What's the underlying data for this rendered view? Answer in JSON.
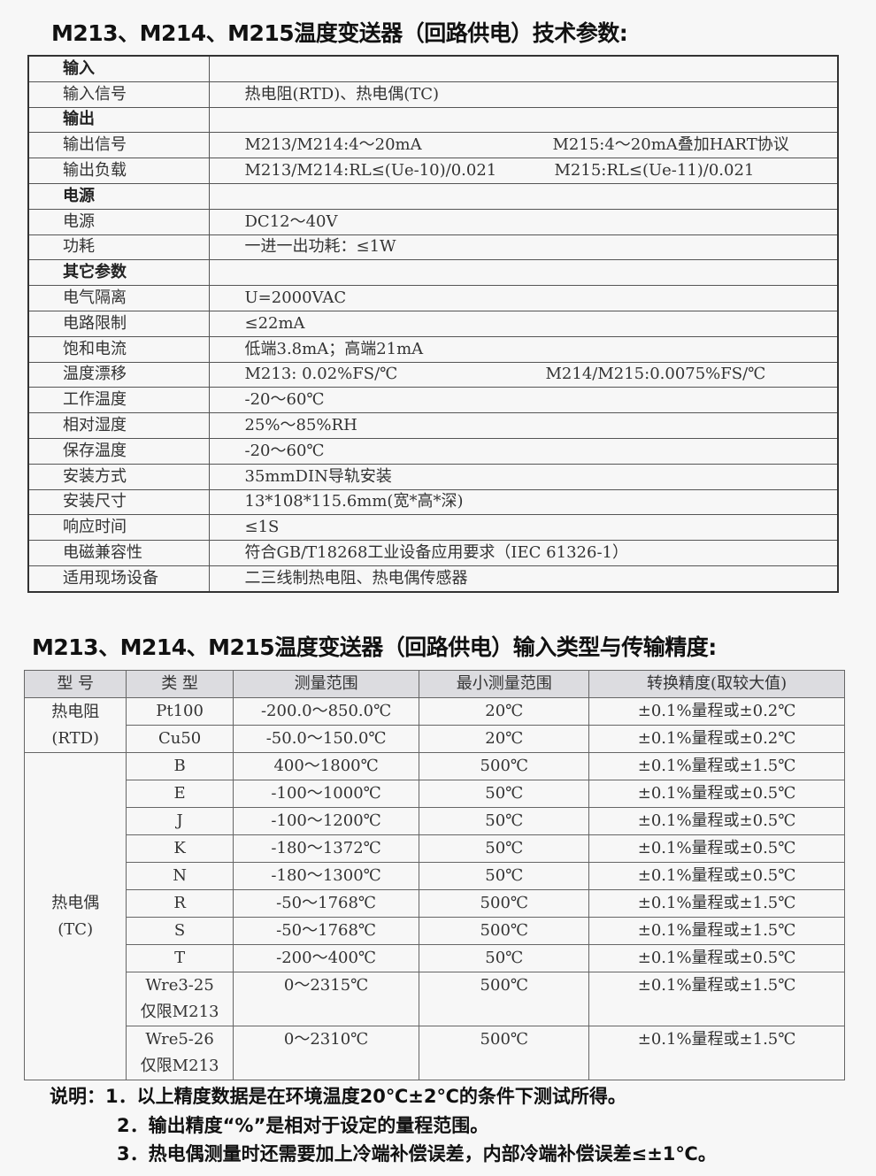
{
  "spec_title": "M213、M214、M215温度变送器（回路供电）技术参数:",
  "spec_rows": [
    {
      "key": "输入",
      "section": true,
      "value": ""
    },
    {
      "key": "输入信号",
      "value": "热电阻(RTD)、热电偶(TC)"
    },
    {
      "key": "输出",
      "section": true,
      "value": ""
    },
    {
      "key": "输出信号",
      "value": "M213/M214:4～20mA",
      "value2": "M215:4～20mA叠加HART协议"
    },
    {
      "key": "输出负载",
      "value": "M213/M214:RL≤(Ue-10)/0.021",
      "value2": "M215:RL≤(Ue-11)/0.021"
    },
    {
      "key": "电源",
      "section": true,
      "value": ""
    },
    {
      "key": "电源",
      "value": "DC12～40V"
    },
    {
      "key": "功耗",
      "value": "一进一出功耗：≤1W"
    },
    {
      "key": "其它参数",
      "section": true,
      "value": ""
    },
    {
      "key": "电气隔离",
      "value": "U=2000VAC"
    },
    {
      "key": "电路限制",
      "value": "≤22mA"
    },
    {
      "key": "饱和电流",
      "value": "低端3.8mA；高端21mA"
    },
    {
      "key": "温度漂移",
      "value": "M213: 0.02%FS/℃",
      "value2": "M214/M215:0.0075%FS/℃"
    },
    {
      "key": "工作温度",
      "value": "-20～60℃"
    },
    {
      "key": "相对湿度",
      "value": "25%～85%RH"
    },
    {
      "key": "保存温度",
      "value": "-20～60℃"
    },
    {
      "key": "安装方式",
      "value": "35mmDIN导轨安装"
    },
    {
      "key": "安装尺寸",
      "value": "13*108*115.6mm(宽*高*深)"
    },
    {
      "key": "响应时间",
      "value": "≤1S"
    },
    {
      "key": "电磁兼容性",
      "value": "符合GB/T18268工业设备应用要求（IEC 61326-1）"
    },
    {
      "key": "适用现场设备",
      "value": "二三线制热电阻、热电偶传感器"
    }
  ],
  "acc_title": "M213、M214、M215温度变送器（回路供电）输入类型与传输精度:",
  "acc_headers": [
    "型 号",
    "类 型",
    "测量范围",
    "最小测量范围",
    "转换精度(取较大值)"
  ],
  "acc_groups": [
    {
      "model": "热电阻\n(RTD)",
      "rows": [
        [
          "Pt100",
          "-200.0～850.0℃",
          "20℃",
          "±0.1%量程或±0.2℃"
        ],
        [
          "Cu50",
          "-50.0～150.0℃",
          "20℃",
          "±0.1%量程或±0.2℃"
        ]
      ]
    },
    {
      "model": "热电偶\n(TC)",
      "rows": [
        [
          "B",
          "400～1800℃",
          "500℃",
          "±0.1%量程或±1.5℃"
        ],
        [
          "E",
          "-100～1000℃",
          "50℃",
          "±0.1%量程或±0.5℃"
        ],
        [
          "J",
          "-100～1200℃",
          "50℃",
          "±0.1%量程或±0.5℃"
        ],
        [
          "K",
          "-180～1372℃",
          "50℃",
          "±0.1%量程或±0.5℃"
        ],
        [
          "N",
          "-180～1300℃",
          "50℃",
          "±0.1%量程或±0.5℃"
        ],
        [
          "R",
          "-50～1768℃",
          "500℃",
          "±0.1%量程或±1.5℃"
        ],
        [
          "S",
          "-50～1768℃",
          "500℃",
          "±0.1%量程或±1.5℃"
        ],
        [
          "T",
          "-200～400℃",
          "50℃",
          "±0.1%量程或±0.5℃"
        ],
        [
          "Wre3-25\n仅限M213",
          "0～2315℃",
          "500℃",
          "±0.1%量程或±1.5℃"
        ],
        [
          "Wre5-26\n仅限M213",
          "0～2310℃",
          "500℃",
          "±0.1%量程或±1.5℃"
        ]
      ]
    }
  ],
  "notes": [
    "说明：1．以上精度数据是在环境温度20℃±2℃的条件下测试所得。",
    "2．输出精度“%”是相对于设定的量程范围。",
    "3．热电偶测量时还需要加上冷端补偿误差，内部冷端补偿误差≤±1℃。"
  ]
}
